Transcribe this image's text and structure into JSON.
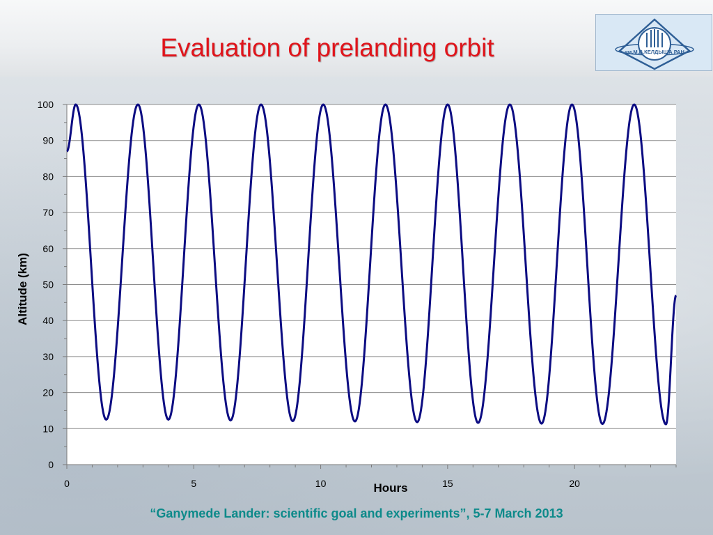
{
  "slide": {
    "title": "Evaluation of prelanding orbit",
    "footer": "“Ganymede Lander: scientific goal and experiments”, 5-7 March 2013",
    "logo_icon": "institute-emblem-icon",
    "logo_text": "им.М.В.КЕЛДЫША РАН",
    "title_color": "#e0141b",
    "footer_color": "#0d8a8a"
  },
  "chart_data": {
    "type": "line",
    "xlabel": "Hours",
    "ylabel": "Altitude (km)",
    "xlim": [
      0,
      24
    ],
    "ylim": [
      0,
      100
    ],
    "x_ticks": [
      0,
      5,
      10,
      15,
      20
    ],
    "y_ticks": [
      0,
      10,
      20,
      30,
      40,
      50,
      60,
      70,
      80,
      90,
      100
    ],
    "grid": "horizontal",
    "line_color": "#0c0c82",
    "series": [
      {
        "name": "",
        "x": [
          0,
          0.35,
          1.55,
          2.8,
          4.0,
          5.2,
          6.45,
          7.65,
          8.9,
          10.1,
          11.35,
          12.55,
          13.8,
          15.0,
          16.2,
          17.45,
          18.7,
          19.9,
          21.1,
          22.35,
          23.6,
          24.0
        ],
        "y": [
          87,
          100,
          12.5,
          100,
          12.5,
          100,
          12.3,
          100,
          12.1,
          100,
          12.0,
          100,
          11.8,
          100,
          11.6,
          100,
          11.4,
          100,
          11.3,
          100,
          11.2,
          47
        ]
      }
    ]
  }
}
